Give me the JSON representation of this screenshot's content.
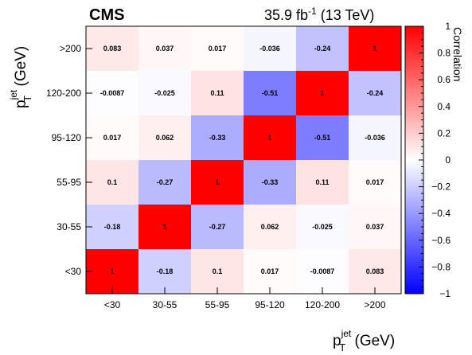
{
  "header": {
    "experiment": "CMS",
    "lumi_value": "35.9 fb",
    "lumi_exponent": "-1",
    "lumi_energy": " (13 TeV)"
  },
  "chart_data": {
    "type": "heatmap",
    "categories": [
      "<30",
      "30-55",
      "55-95",
      "95-120",
      "120-200",
      ">200"
    ],
    "xlabel": {
      "main": "p",
      "sup": "jet",
      "sub": "T",
      "unit": " (GeV)"
    },
    "ylabel": {
      "main": "p",
      "sup": "jet",
      "sub": "T",
      "unit": " (GeV)"
    },
    "colorbar": {
      "title": "Correlation",
      "range": [
        -1,
        1
      ],
      "ticks": [
        "1",
        "0.8",
        "0.6",
        "0.4",
        "0.2",
        "0",
        "−0.2",
        "−0.4",
        "−0.6",
        "−0.8",
        "−1"
      ],
      "tick_values": [
        1,
        0.8,
        0.6,
        0.4,
        0.2,
        0,
        -0.2,
        -0.4,
        -0.6,
        -0.8,
        -1
      ],
      "colors": {
        "low": "#0000ff",
        "mid": "#ffffff",
        "high": "#ff0000"
      }
    },
    "rows_top_to_bottom": [
      ">200",
      "120-200",
      "95-120",
      "55-95",
      "30-55",
      "<30"
    ],
    "matrix": [
      [
        "0.083",
        "0.037",
        "0.017",
        "-0.036",
        "-0.24",
        "1"
      ],
      [
        "-0.0087",
        "-0.025",
        "0.11",
        "-0.51",
        "1",
        "-0.24"
      ],
      [
        "0.017",
        "0.062",
        "-0.33",
        "1",
        "-0.51",
        "-0.036"
      ],
      [
        "0.1",
        "-0.27",
        "1",
        "-0.33",
        "0.11",
        "0.017"
      ],
      [
        "-0.18",
        "1",
        "-0.27",
        "0.062",
        "-0.025",
        "0.037"
      ],
      [
        "1",
        "-0.18",
        "0.1",
        "0.017",
        "-0.0087",
        "0.083"
      ]
    ]
  }
}
